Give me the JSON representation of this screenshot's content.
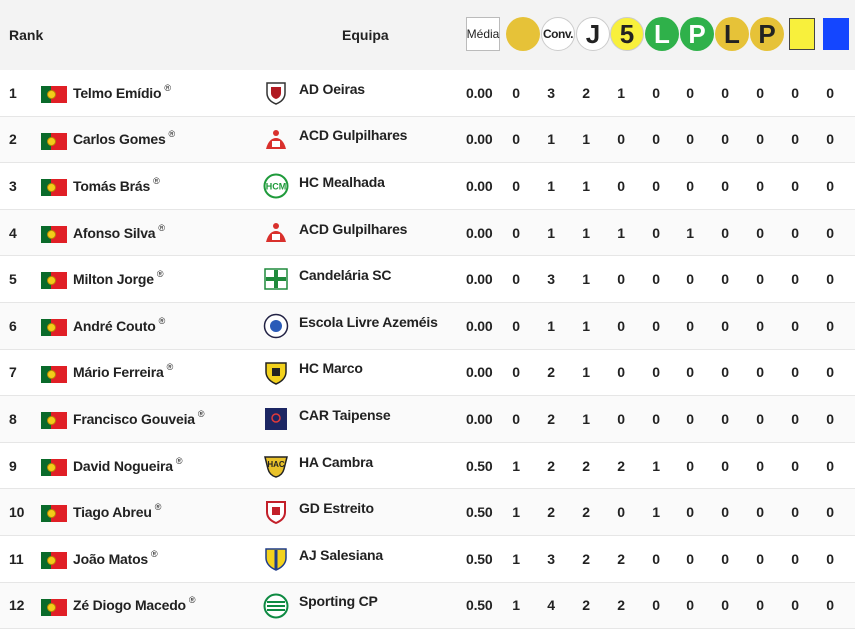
{
  "header": {
    "rank": "Rank",
    "team": "Equipa",
    "media": "Média",
    "conv": "Conv.",
    "j": "J",
    "five": "5",
    "l1": "L",
    "p1": "P",
    "l2": "L",
    "p2": "P"
  },
  "colors": {
    "yellow": "#e6c238",
    "bright_yellow": "#f8f03c",
    "green": "#2fb14a",
    "blue": "#1446ff"
  },
  "rows": [
    {
      "rank": "1",
      "name": "Telmo Emídio",
      "team": "AD Oeiras",
      "logo": "shield-red",
      "media": "0.00",
      "s": [
        "0",
        "3",
        "2",
        "1",
        "0",
        "0",
        "0",
        "0",
        "0",
        "0"
      ]
    },
    {
      "rank": "2",
      "name": "Carlos Gomes",
      "team": "ACD Gulpilhares",
      "logo": "crest-red",
      "media": "0.00",
      "s": [
        "0",
        "1",
        "1",
        "0",
        "0",
        "0",
        "0",
        "0",
        "0",
        "0"
      ]
    },
    {
      "rank": "3",
      "name": "Tomás Brás",
      "team": "HC Mealhada",
      "logo": "circle-green",
      "media": "0.00",
      "s": [
        "0",
        "1",
        "1",
        "0",
        "0",
        "0",
        "0",
        "0",
        "0",
        "0"
      ]
    },
    {
      "rank": "4",
      "name": "Afonso Silva",
      "team": "ACD Gulpilhares",
      "logo": "crest-red",
      "media": "0.00",
      "s": [
        "0",
        "1",
        "1",
        "1",
        "0",
        "1",
        "0",
        "0",
        "0",
        "0"
      ]
    },
    {
      "rank": "5",
      "name": "Milton Jorge",
      "team": "Candelária SC",
      "logo": "cross-green",
      "media": "0.00",
      "s": [
        "0",
        "3",
        "1",
        "0",
        "0",
        "0",
        "0",
        "0",
        "0",
        "0"
      ]
    },
    {
      "rank": "6",
      "name": "André Couto",
      "team": "Escola Livre Azeméis",
      "logo": "circle-blue",
      "media": "0.00",
      "s": [
        "0",
        "1",
        "1",
        "0",
        "0",
        "0",
        "0",
        "0",
        "0",
        "0"
      ]
    },
    {
      "rank": "7",
      "name": "Mário Ferreira",
      "team": "HC Marco",
      "logo": "shield-yellow",
      "media": "0.00",
      "s": [
        "0",
        "2",
        "1",
        "0",
        "0",
        "0",
        "0",
        "0",
        "0",
        "0"
      ]
    },
    {
      "rank": "8",
      "name": "Francisco Gouveia",
      "team": "CAR Taipense",
      "logo": "square-navy",
      "media": "0.00",
      "s": [
        "0",
        "2",
        "1",
        "0",
        "0",
        "0",
        "0",
        "0",
        "0",
        "0"
      ]
    },
    {
      "rank": "9",
      "name": "David Nogueira",
      "team": "HA Cambra",
      "logo": "shield-black",
      "media": "0.50",
      "s": [
        "1",
        "2",
        "2",
        "2",
        "1",
        "0",
        "0",
        "0",
        "0",
        "0"
      ]
    },
    {
      "rank": "10",
      "name": "Tiago Abreu",
      "team": "GD Estreito",
      "logo": "shield-red2",
      "media": "0.50",
      "s": [
        "1",
        "2",
        "2",
        "0",
        "1",
        "0",
        "0",
        "0",
        "0",
        "0"
      ]
    },
    {
      "rank": "11",
      "name": "João Matos",
      "team": "AJ Salesiana",
      "logo": "shield-blue",
      "media": "0.50",
      "s": [
        "1",
        "3",
        "2",
        "2",
        "0",
        "0",
        "0",
        "0",
        "0",
        "0"
      ]
    },
    {
      "rank": "12",
      "name": "Zé Diogo Macedo",
      "team": "Sporting CP",
      "logo": "lion-green",
      "media": "0.50",
      "s": [
        "1",
        "4",
        "2",
        "2",
        "0",
        "0",
        "0",
        "0",
        "0",
        "0"
      ]
    }
  ]
}
